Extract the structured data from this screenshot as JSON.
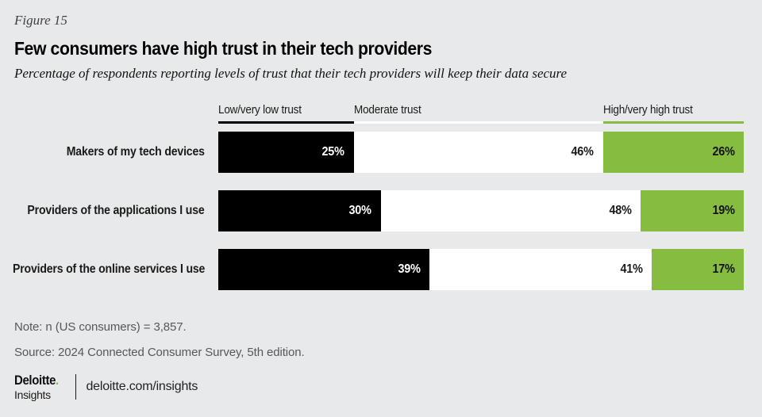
{
  "header": {
    "figure_label": "Figure 15",
    "title": "Few consumers have high trust in their tech providers",
    "subtitle": "Percentage of respondents reporting levels of trust that their tech providers will keep their data secure"
  },
  "chart_data": {
    "type": "bar",
    "orientation": "horizontal_stacked",
    "title": "Few consumers have high trust in their tech providers",
    "subtitle": "Percentage of respondents reporting levels of trust that their tech providers will keep their data secure",
    "categories": [
      "Makers of my tech devices",
      "Providers of the applications I use",
      "Providers of the online services I use"
    ],
    "series": [
      {
        "key": "low",
        "name": "Low/very low trust",
        "color": "#000000",
        "label_color": "#ffffff",
        "values": [
          25,
          30,
          39
        ]
      },
      {
        "key": "moderate",
        "name": "Moderate trust",
        "color": "#ffffff",
        "label_color": "#1a1a1a",
        "values": [
          46,
          48,
          41
        ]
      },
      {
        "key": "high",
        "name": "High/very high trust",
        "color": "#86bd40",
        "label_color": "#121212",
        "values": [
          26,
          19,
          17
        ]
      }
    ],
    "value_suffix": "%",
    "data_labels": "inside_end",
    "legend_position": "top",
    "row_sum_scale": 97,
    "grid": "off"
  },
  "footnotes": {
    "note": "Note: n (US consumers) = 3,857.",
    "source": "Source: 2024 Connected Consumer Survey, 5th edition."
  },
  "footer": {
    "brand_name": "Deloitte",
    "brand_dot": ".",
    "brand_sub": "Insights",
    "link": "deloitte.com/insights"
  },
  "colors": {
    "background": "#e8e9ea",
    "accent_green": "#86bd40",
    "bar_black": "#000000",
    "bar_white": "#ffffff",
    "muted_text": "#57585a"
  }
}
